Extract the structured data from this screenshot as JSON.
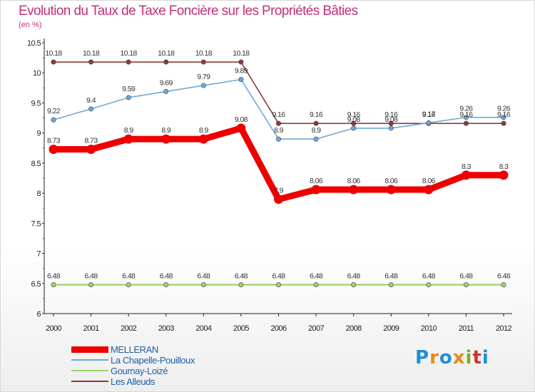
{
  "title": "Evolution du Taux de Taxe Foncière sur les Propriétés Bâties",
  "unit": "(en %)",
  "logo": {
    "text": "Proxiti",
    "colors": [
      "#1f8fd6",
      "#e8891c",
      "#1f8fd6",
      "#e8891c",
      "#7ab318",
      "#d62f2f",
      "#1f8fd6"
    ]
  },
  "chart_data": {
    "type": "line",
    "title": "Evolution du Taux de Taxe Foncière sur les Propriétés Bâties",
    "ylabel": "(en %)",
    "xlabel": "",
    "x": [
      "2000",
      "2001",
      "2002",
      "2003",
      "2004",
      "2005",
      "2006",
      "2007",
      "2008",
      "2009",
      "2010",
      "2011",
      "2012"
    ],
    "ylim": [
      6,
      10.5
    ],
    "yticks": [
      6,
      6.5,
      7,
      7.5,
      8,
      8.5,
      9,
      9.5,
      10,
      10.5
    ],
    "legend_position": "bottom-left",
    "series": [
      {
        "name": "MELLERAN",
        "color": "#ee0000",
        "values": [
          8.73,
          8.73,
          8.9,
          8.9,
          8.9,
          9.08,
          7.9,
          8.06,
          8.06,
          8.06,
          8.06,
          8.3,
          8.3
        ]
      },
      {
        "name": "La Chapelle-Pouilloux",
        "color": "#6ea8d8",
        "values": [
          9.22,
          9.4,
          9.59,
          9.69,
          9.79,
          9.89,
          8.9,
          8.9,
          9.08,
          9.08,
          9.17,
          9.26,
          9.26
        ]
      },
      {
        "name": "Gournay-Loizé",
        "color": "#9ed36a",
        "values": [
          6.48,
          6.48,
          6.48,
          6.48,
          6.48,
          6.48,
          6.48,
          6.48,
          6.48,
          6.48,
          6.48,
          6.48,
          6.48
        ]
      },
      {
        "name": "Les Alleuds",
        "color": "#8c3a3a",
        "values": [
          10.18,
          10.18,
          10.18,
          10.18,
          10.18,
          10.18,
          9.16,
          9.16,
          9.16,
          9.16,
          9.16,
          9.16,
          9.16
        ]
      }
    ]
  }
}
